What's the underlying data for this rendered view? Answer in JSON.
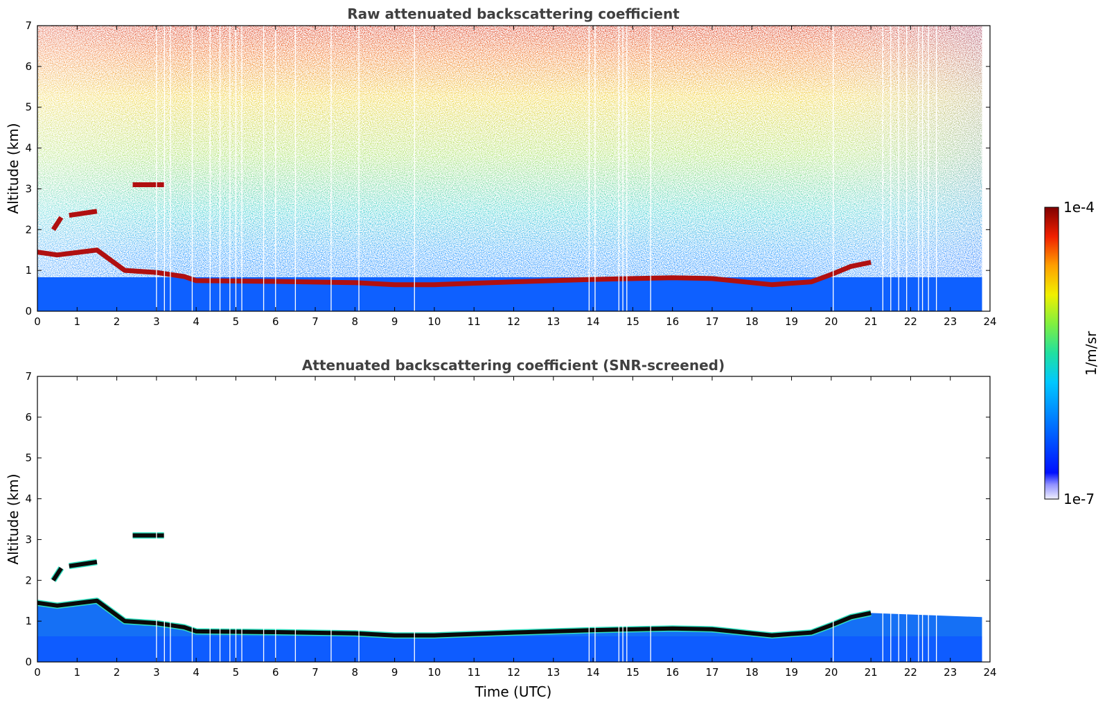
{
  "chart_data": [
    {
      "type": "heatmap",
      "title": "Raw attenuated backscattering coefficient",
      "xlabel": "",
      "ylabel": "Altitude (km)",
      "xlim": [
        0,
        24
      ],
      "ylim": [
        0,
        7
      ],
      "xticks": [
        "0",
        "1",
        "2",
        "3",
        "4",
        "5",
        "6",
        "7",
        "8",
        "9",
        "10",
        "11",
        "12",
        "13",
        "14",
        "15",
        "16",
        "17",
        "18",
        "19",
        "20",
        "21",
        "22",
        "23",
        "24"
      ],
      "yticks": [
        "0",
        "1",
        "2",
        "3",
        "4",
        "5",
        "6",
        "7"
      ],
      "screened": false,
      "layers": [
        {
          "name": "boundary-layer-top",
          "points": [
            [
              0,
              1.45
            ],
            [
              0.5,
              1.38
            ],
            [
              1.5,
              1.5
            ],
            [
              2.2,
              1.0
            ],
            [
              3.0,
              0.95
            ],
            [
              3.7,
              0.85
            ],
            [
              4,
              0.75
            ],
            [
              6,
              0.73
            ],
            [
              8,
              0.7
            ],
            [
              9,
              0.65
            ],
            [
              10,
              0.65
            ],
            [
              12,
              0.72
            ],
            [
              14,
              0.78
            ],
            [
              16,
              0.82
            ],
            [
              17,
              0.8
            ],
            [
              18,
              0.7
            ],
            [
              18.5,
              0.65
            ],
            [
              19.5,
              0.72
            ],
            [
              20,
              0.9
            ],
            [
              20.5,
              1.1
            ],
            [
              21,
              1.2
            ]
          ]
        },
        {
          "name": "elevated-cloud-3km",
          "points": [
            [
              2.4,
              3.1
            ],
            [
              3.2,
              3.1
            ]
          ]
        },
        {
          "name": "elevated-cloud-2.4km",
          "points": [
            [
              0.8,
              2.35
            ],
            [
              1.5,
              2.45
            ]
          ]
        },
        {
          "name": "elevated-cloud-2km",
          "points": [
            [
              0.4,
              2.0
            ],
            [
              0.6,
              2.3
            ]
          ]
        }
      ]
    },
    {
      "type": "heatmap",
      "title": "Attenuated backscattering coefficient (SNR-screened)",
      "xlabel": "Time (UTC)",
      "ylabel": "Altitude (km)",
      "xlim": [
        0,
        24
      ],
      "ylim": [
        0,
        7
      ],
      "xticks": [
        "0",
        "1",
        "2",
        "3",
        "4",
        "5",
        "6",
        "7",
        "8",
        "9",
        "10",
        "11",
        "12",
        "13",
        "14",
        "15",
        "16",
        "17",
        "18",
        "19",
        "20",
        "21",
        "22",
        "23",
        "24"
      ],
      "yticks": [
        "0",
        "1",
        "2",
        "3",
        "4",
        "5",
        "6",
        "7"
      ],
      "screened": true
    }
  ],
  "colorbar": {
    "label": "1/m/sr",
    "max_label": "1e-4",
    "min_label": "1e-7",
    "scale": "log",
    "range": [
      1e-07,
      0.0001
    ],
    "colormap": "jet"
  }
}
